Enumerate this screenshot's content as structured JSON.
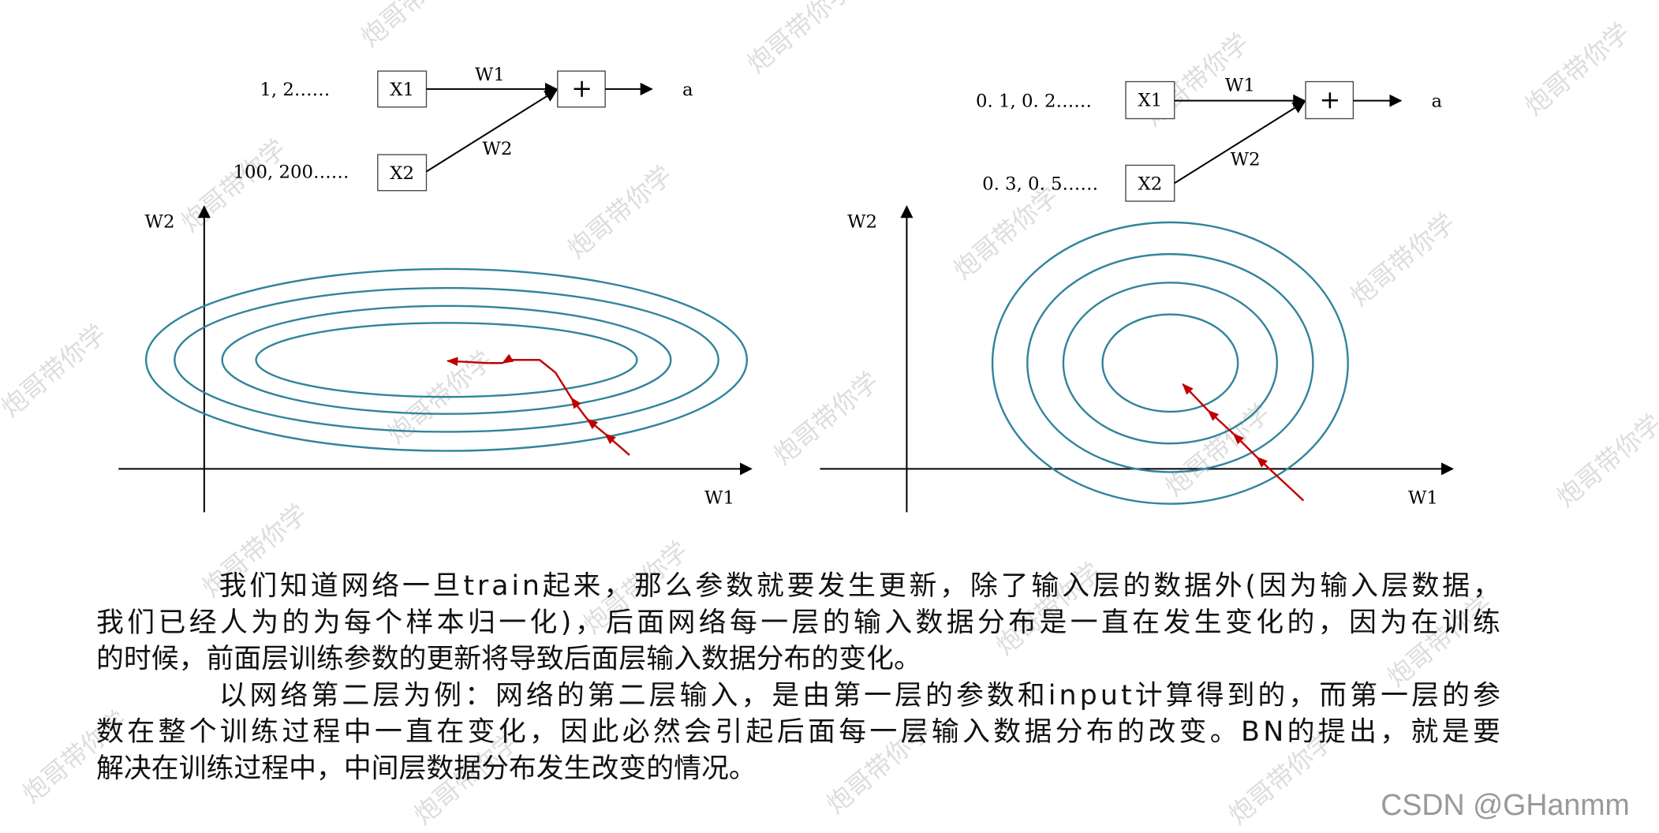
{
  "diagrams": [
    {
      "inputs": [
        {
          "values": "1, 2……",
          "node": "X1",
          "weight": "W1"
        },
        {
          "values": "100, 200……",
          "node": "X2",
          "weight": "W2"
        }
      ],
      "sum": "+",
      "output": "a",
      "x_axis": "W1",
      "y_axis": "W2"
    },
    {
      "inputs": [
        {
          "values": "0. 1, 0. 2……",
          "node": "X1",
          "weight": "W1"
        },
        {
          "values": "0. 3, 0. 5……",
          "node": "X2",
          "weight": "W2"
        }
      ],
      "sum": "+",
      "output": "a",
      "x_axis": "W1",
      "y_axis": "W2"
    }
  ],
  "paragraphs": [
    [
      "我们知道网络一旦train起来，那么参数就要发生更新，除了输入层的数据外(因为输入层数据，",
      "我们已经人为的为每个样本归一化)，后面网络每一层的输入数据分布是一直在发生变化的，因为在训练",
      "的时候，前面层训练参数的更新将导致后面层输入数据分布的变化。"
    ],
    [
      "以网络第二层为例：网络的第二层输入，是由第一层的参数和input计算得到的，而第一层的参",
      "数在整个训练过程中一直在变化，因此必然会引起后面每一层输入数据分布的改变。BN的提出，就是要",
      "解决在训练过程中，中间层数据分布发生改变的情况。"
    ]
  ],
  "watermark": "炮哥带你学",
  "footer": "CSDN @GHanmm"
}
